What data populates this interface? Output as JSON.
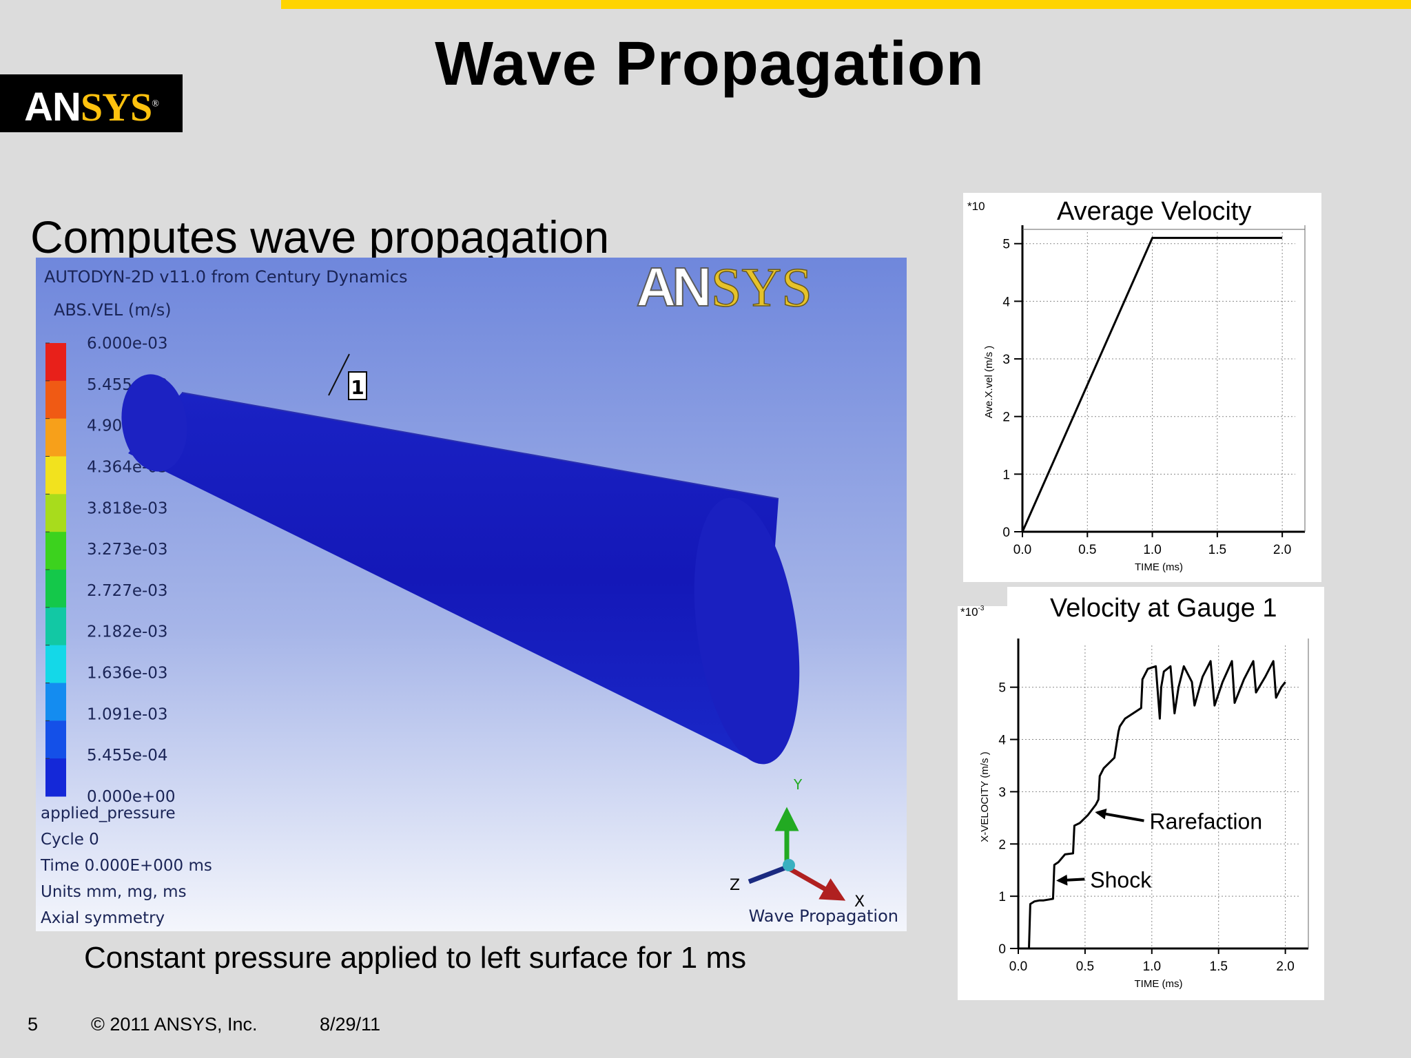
{
  "slide": {
    "title": "Wave Propagation",
    "subtitle": "Computes wave propagation",
    "caption": "Constant pressure applied to left surface for 1 ms",
    "accent_color": "#ffd400"
  },
  "logo": {
    "part1": "AN",
    "part2": "SYS",
    "registered": "®"
  },
  "simulation": {
    "header": "AUTODYN-2D v11.0 from Century Dynamics",
    "variable": "ABS.VEL (m/s)",
    "legend_values": [
      "6.000e-03",
      "5.455e-03",
      "4.909e-03",
      "4.364e-03",
      "3.818e-03",
      "3.273e-03",
      "2.727e-03",
      "2.182e-03",
      "1.636e-03",
      "1.091e-03",
      "5.455e-04",
      "0.000e+00"
    ],
    "legend_colors": [
      "#e8201a",
      "#f05a14",
      "#f7a01a",
      "#f2e21e",
      "#a8dc1c",
      "#3cd21e",
      "#14c84a",
      "#12c8a4",
      "#14d8e8",
      "#148cf0",
      "#1450e8",
      "#1428d8"
    ],
    "info_lines": [
      "applied_pressure",
      "Cycle 0",
      "Time 0.000E+000 ms",
      "Units mm, mg, ms",
      "Axial symmetry"
    ],
    "gauge_label": "1",
    "axis_labels": {
      "y": "Y",
      "z": "Z",
      "x": "X"
    },
    "footer_label": "Wave Propagation",
    "logo_part1": "AN",
    "logo_part2": "SYS",
    "cylinder_color": "#1a1ec8"
  },
  "footer": {
    "page": "5",
    "copyright": "© 2011 ANSYS, Inc.",
    "date": "8/29/11"
  },
  "chart_data": [
    {
      "type": "line",
      "title": "Average Velocity",
      "xlabel": "TIME (ms)",
      "ylabel": "Ave.X.vel (m/s )",
      "y_multiplier": "*10",
      "xlim": [
        0,
        2.1
      ],
      "ylim": [
        0,
        5.2
      ],
      "xticks": [
        "0.0",
        "0.5",
        "1.0",
        "1.5",
        "2.0"
      ],
      "yticks": [
        "0",
        "1",
        "2",
        "3",
        "4",
        "5"
      ],
      "grid": true,
      "series": [
        {
          "x": [
            0,
            1.0,
            2.0
          ],
          "y": [
            0,
            5.1,
            5.1
          ]
        }
      ]
    },
    {
      "type": "line",
      "title": "Velocity at Gauge 1",
      "xlabel": "TIME (ms)",
      "ylabel": "X-VELOCITY (m/s )",
      "y_multiplier": "*10",
      "y_exponent": "-3",
      "xlim": [
        0,
        2.1
      ],
      "ylim": [
        0,
        5.8
      ],
      "xticks": [
        "0.0",
        "0.5",
        "1.0",
        "1.5",
        "2.0"
      ],
      "yticks": [
        "0",
        "1",
        "2",
        "3",
        "4",
        "5"
      ],
      "grid": true,
      "annotations": [
        {
          "text": "Rarefaction",
          "x": 0.57,
          "y": 2.55
        },
        {
          "text": "Shock",
          "x": 0.28,
          "y": 1.3
        }
      ],
      "series": [
        {
          "x": [
            0.08,
            0.09,
            0.12,
            0.16,
            0.19,
            0.26,
            0.27,
            0.3,
            0.35,
            0.41,
            0.42,
            0.46,
            0.52,
            0.55,
            0.58,
            0.6,
            0.61,
            0.64,
            0.72,
            0.75,
            0.76,
            0.8,
            0.92,
            0.93,
            0.97,
            1.03,
            1.06,
            1.07,
            1.09,
            1.14,
            1.17,
            1.2,
            1.24,
            1.3,
            1.32,
            1.38,
            1.44,
            1.47,
            1.53,
            1.6,
            1.62,
            1.69,
            1.76,
            1.78,
            1.85,
            1.91,
            1.93,
            1.97,
            2.0
          ],
          "y": [
            0,
            0.85,
            0.9,
            0.92,
            0.92,
            0.95,
            1.6,
            1.65,
            1.8,
            1.82,
            2.35,
            2.4,
            2.55,
            2.65,
            2.75,
            2.85,
            3.3,
            3.45,
            3.65,
            4.15,
            4.25,
            4.4,
            4.6,
            5.15,
            5.35,
            5.4,
            4.4,
            5.0,
            5.3,
            5.4,
            4.5,
            5.0,
            5.4,
            5.1,
            4.65,
            5.2,
            5.5,
            4.65,
            5.1,
            5.5,
            4.7,
            5.15,
            5.5,
            4.9,
            5.2,
            5.5,
            4.8,
            5.0,
            5.1
          ]
        }
      ]
    }
  ]
}
